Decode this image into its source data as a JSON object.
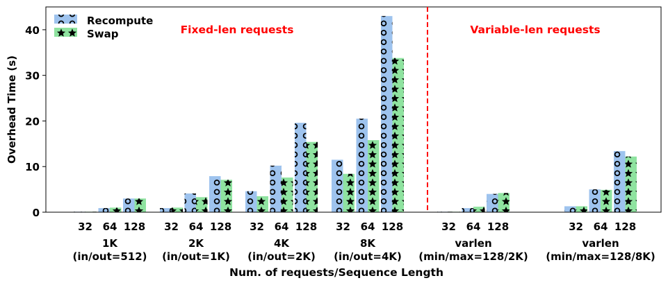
{
  "chart_data": {
    "type": "bar",
    "ylabel": "Overhead Time (s)",
    "xlabel": "Num. of requests/Sequence Length",
    "ylim": [
      0,
      45
    ],
    "yticks": [
      0,
      10,
      20,
      30,
      40
    ],
    "legend_position": "top-left",
    "series": [
      {
        "name": "Recompute",
        "color": "#9ec3ee",
        "pattern": "circle",
        "values": [
          0.1,
          0.9,
          3.0,
          0.9,
          4.1,
          7.9,
          4.6,
          10.2,
          19.6,
          11.5,
          20.5,
          43.0,
          0.1,
          0.9,
          4.0,
          1.3,
          5.0,
          13.4
        ]
      },
      {
        "name": "Swap",
        "color": "#8fe3a0",
        "pattern": "star",
        "values": [
          0.1,
          1.0,
          3.0,
          1.0,
          3.3,
          7.1,
          3.5,
          7.6,
          15.4,
          8.4,
          15.8,
          33.8,
          0.1,
          1.2,
          4.2,
          1.3,
          4.9,
          12.2
        ]
      }
    ],
    "groups": [
      {
        "line1": "1K",
        "line2": "(in/out=512)",
        "ticks": [
          "32",
          "64",
          "128"
        ]
      },
      {
        "line1": "2K",
        "line2": "(in/out=1K)",
        "ticks": [
          "32",
          "64",
          "128"
        ]
      },
      {
        "line1": "4K",
        "line2": "(in/out=2K)",
        "ticks": [
          "32",
          "64",
          "128"
        ]
      },
      {
        "line1": "8K",
        "line2": "(in/out=4K)",
        "ticks": [
          "32",
          "64",
          "128"
        ]
      },
      {
        "line1": "varlen",
        "line2": "(min/max=128/2K)",
        "ticks": [
          "32",
          "64",
          "128"
        ]
      },
      {
        "line1": "varlen",
        "line2": "(min/max=128/8K)",
        "ticks": [
          "32",
          "64",
          "128"
        ]
      }
    ],
    "annotations": {
      "fixed": "Fixed-len requests",
      "variable": "Variable-len requests",
      "color": "#ff0000"
    }
  }
}
